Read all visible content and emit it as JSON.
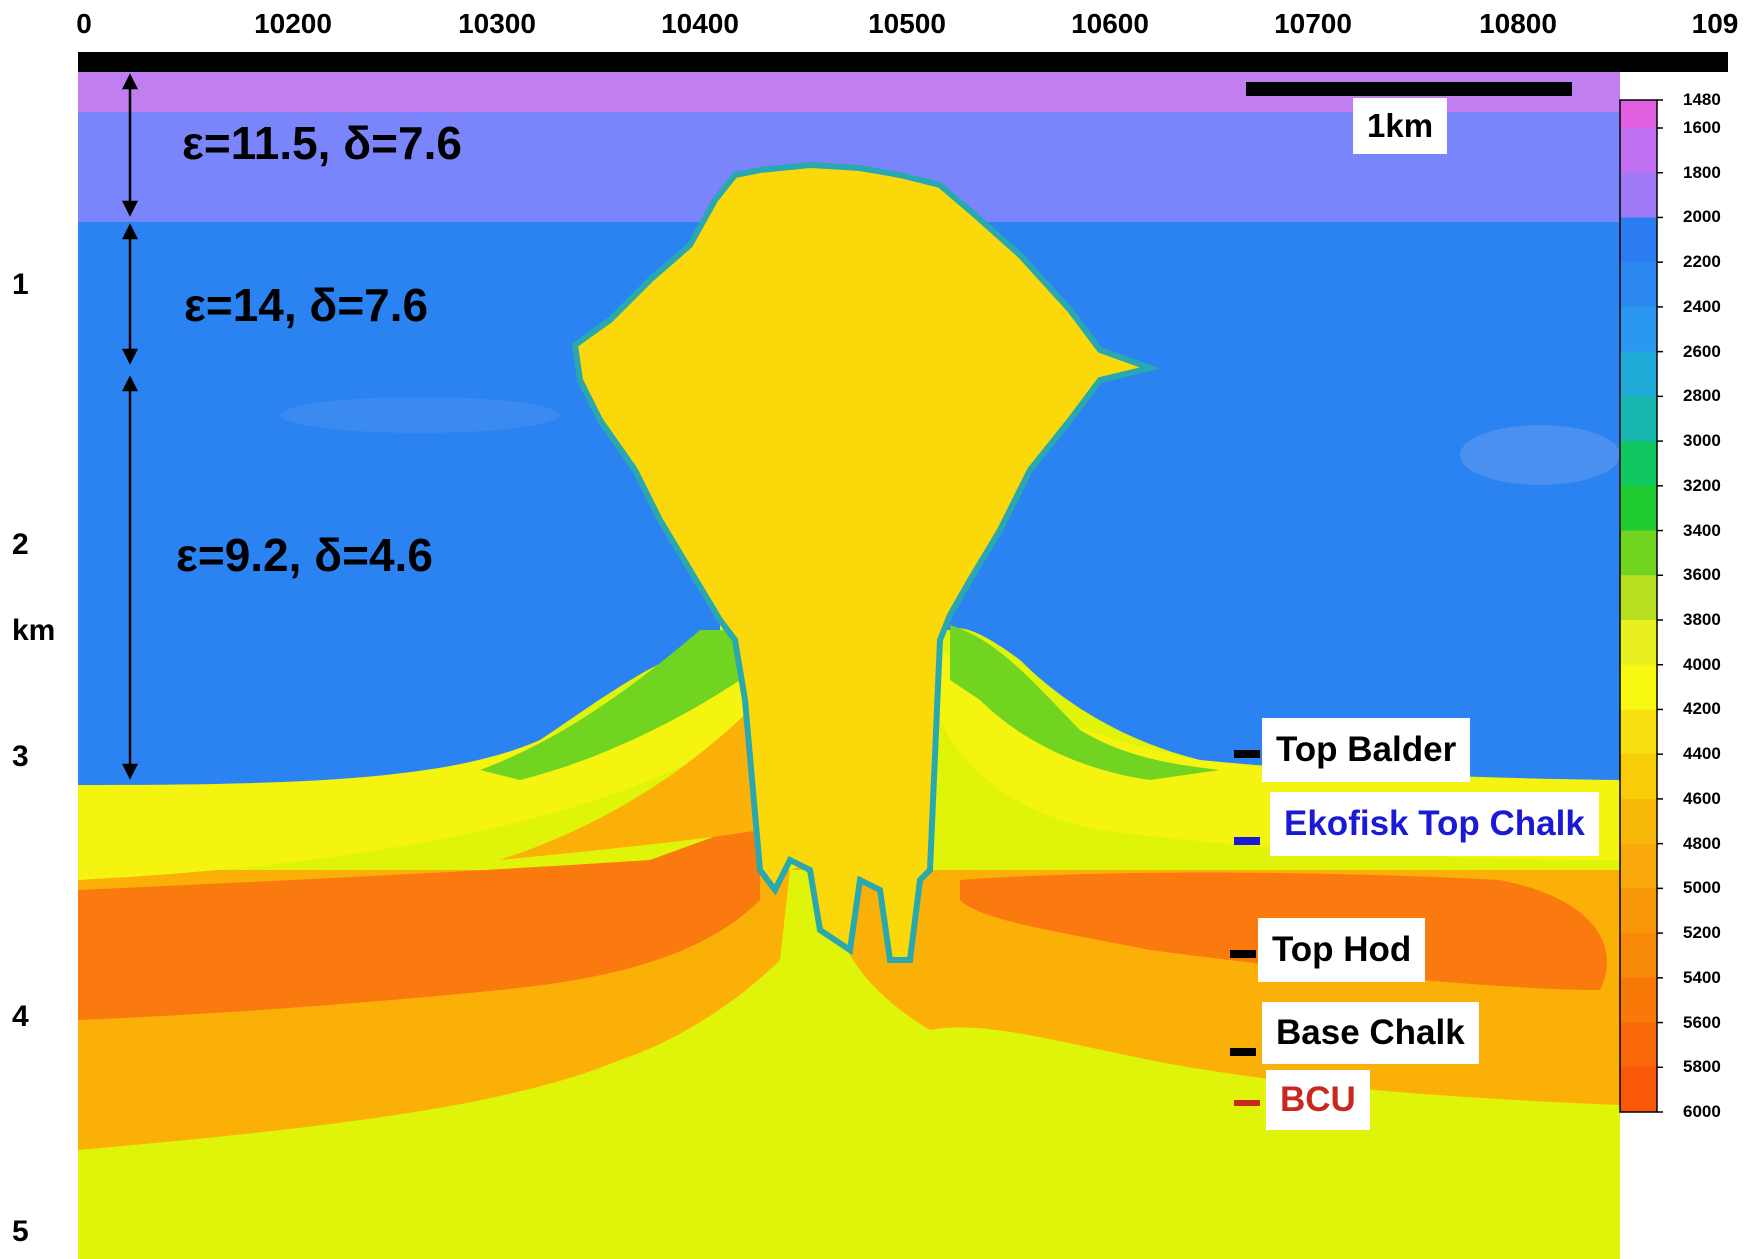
{
  "top_axis": {
    "ticks": [
      "0",
      "10200",
      "10300",
      "10400",
      "10500",
      "10600",
      "10700",
      "10800",
      "109"
    ]
  },
  "left_axis": {
    "ticks": [
      "1",
      "2",
      "3",
      "4",
      "5"
    ],
    "unit": "km"
  },
  "scale_bar": {
    "label": "1km"
  },
  "anisotropy_labels": [
    "ε=11.5, δ=7.6",
    "ε=14, δ=7.6",
    "ε=9.2, δ=4.6"
  ],
  "horizons": [
    {
      "label": "Top Balder",
      "color": "#000000"
    },
    {
      "label": "Ekofisk Top Chalk",
      "color": "#1a1ad6"
    },
    {
      "label": "Top Hod",
      "color": "#000000"
    },
    {
      "label": "Base Chalk",
      "color": "#000000"
    },
    {
      "label": "BCU",
      "color": "#c8281e"
    }
  ],
  "colorbar": {
    "ticks": [
      "1480",
      "1600",
      "1800",
      "2000",
      "2200",
      "2400",
      "2600",
      "2800",
      "3000",
      "3200",
      "3400",
      "3600",
      "3800",
      "4000",
      "4200",
      "4400",
      "4600",
      "4800",
      "5000",
      "5200",
      "5400",
      "5600",
      "5800",
      "6000"
    ],
    "colors": [
      "#e060e0",
      "#c070f0",
      "#a07af8",
      "#2a7cf0",
      "#2a88f0",
      "#2a98f0",
      "#20aad8",
      "#18b8b0",
      "#10c860",
      "#20cc30",
      "#70d420",
      "#b8e020",
      "#e8f020",
      "#f8f810",
      "#f8e010",
      "#f8cc08",
      "#f8b808",
      "#f8a808",
      "#f89808",
      "#f88808",
      "#f87808",
      "#f86808",
      "#f85808"
    ]
  },
  "colors": {
    "water": "#c07ef0",
    "layer1": "#7a85fb",
    "layer2": "#2b83f2",
    "salt": "#fbd80a",
    "chalk_yellow": "#f5f410",
    "orange": "#fbb008",
    "dark_orange": "#fa7a10",
    "base": "#dff408"
  }
}
